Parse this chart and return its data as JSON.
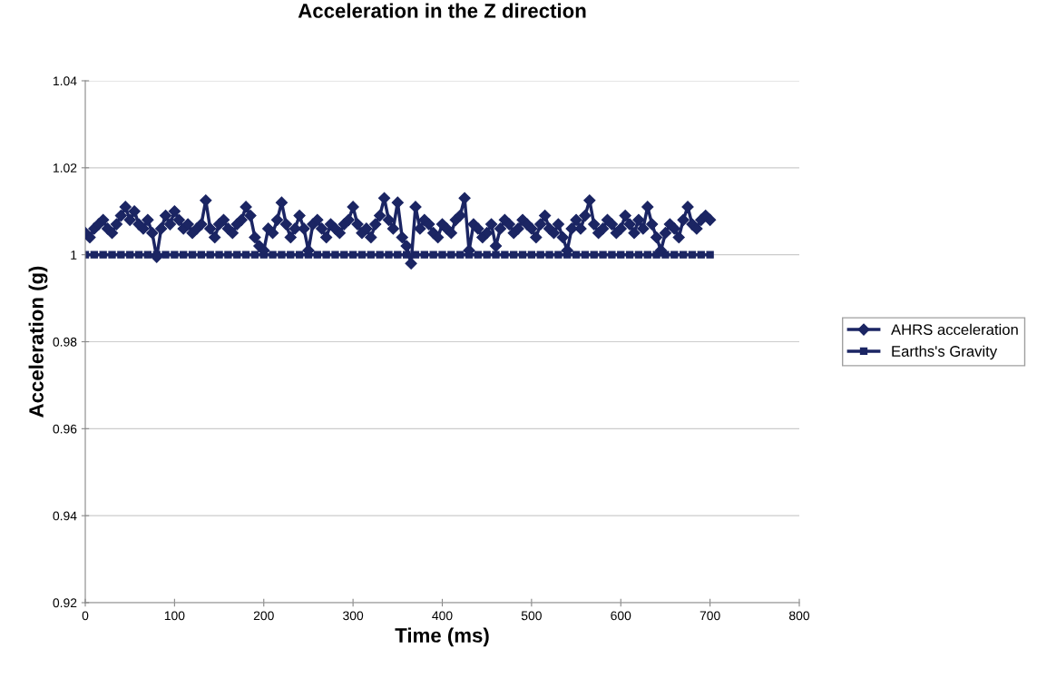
{
  "chart_data": {
    "type": "line",
    "title": "Acceleration in the Z direction",
    "xlabel": "Time (ms)",
    "ylabel": "Acceleration (g)",
    "xlim": [
      0,
      800
    ],
    "xticks": [
      0,
      100,
      200,
      300,
      400,
      500,
      600,
      700,
      800
    ],
    "ylim": [
      0.92,
      1.04
    ],
    "yticks": [
      0.92,
      0.94,
      0.96,
      0.98,
      1,
      1.02,
      1.04
    ],
    "grid": "y",
    "legend": "right",
    "series": [
      {
        "name": "AHRS acceleration",
        "color": "#1b2563",
        "marker": "diamond",
        "x": [
          0,
          5,
          10,
          15,
          20,
          25,
          30,
          35,
          40,
          45,
          50,
          55,
          60,
          65,
          70,
          75,
          80,
          85,
          90,
          95,
          100,
          105,
          110,
          115,
          120,
          125,
          130,
          135,
          140,
          145,
          150,
          155,
          160,
          165,
          170,
          175,
          180,
          185,
          190,
          195,
          200,
          205,
          210,
          215,
          220,
          225,
          230,
          235,
          240,
          245,
          250,
          255,
          260,
          265,
          270,
          275,
          280,
          285,
          290,
          295,
          300,
          305,
          310,
          315,
          320,
          325,
          330,
          335,
          340,
          345,
          350,
          355,
          360,
          365,
          370,
          375,
          380,
          385,
          390,
          395,
          400,
          405,
          410,
          415,
          420,
          425,
          430,
          435,
          440,
          445,
          450,
          455,
          460,
          465,
          470,
          475,
          480,
          485,
          490,
          495,
          500,
          505,
          510,
          515,
          520,
          525,
          530,
          535,
          540,
          545,
          550,
          555,
          560,
          565,
          570,
          575,
          580,
          585,
          590,
          595,
          600,
          605,
          610,
          615,
          620,
          625,
          630,
          635,
          640,
          645,
          650,
          655,
          660,
          665,
          670,
          675,
          680,
          685,
          690,
          695,
          700
        ],
        "values": [
          1.005,
          1.004,
          1.006,
          1.007,
          1.008,
          1.006,
          1.005,
          1.007,
          1.009,
          1.011,
          1.008,
          1.01,
          1.007,
          1.006,
          1.008,
          1.005,
          0.9995,
          1.006,
          1.009,
          1.007,
          1.01,
          1.008,
          1.006,
          1.007,
          1.005,
          1.006,
          1.007,
          1.0125,
          1.006,
          1.004,
          1.007,
          1.008,
          1.006,
          1.005,
          1.007,
          1.008,
          1.011,
          1.009,
          1.004,
          1.002,
          1.001,
          1.006,
          1.005,
          1.008,
          1.012,
          1.007,
          1.004,
          1.006,
          1.009,
          1.006,
          1.001,
          1.007,
          1.008,
          1.006,
          1.004,
          1.007,
          1.006,
          1.005,
          1.007,
          1.008,
          1.011,
          1.007,
          1.005,
          1.006,
          1.004,
          1.007,
          1.009,
          1.013,
          1.008,
          1.006,
          1.012,
          1.004,
          1.002,
          0.998,
          1.011,
          1.006,
          1.008,
          1.007,
          1.005,
          1.004,
          1.007,
          1.006,
          1.005,
          1.008,
          1.009,
          1.013,
          1.001,
          1.007,
          1.006,
          1.004,
          1.005,
          1.007,
          1.002,
          1.006,
          1.008,
          1.007,
          1.005,
          1.006,
          1.008,
          1.007,
          1.006,
          1.004,
          1.007,
          1.009,
          1.006,
          1.005,
          1.007,
          1.004,
          1.001,
          1.006,
          1.008,
          1.006,
          1.009,
          1.0125,
          1.007,
          1.005,
          1.006,
          1.008,
          1.007,
          1.005,
          1.006,
          1.009,
          1.007,
          1.005,
          1.008,
          1.006,
          1.011,
          1.007,
          1.004,
          1.001,
          1.005,
          1.007,
          1.006,
          1.004,
          1.008,
          1.011,
          1.007,
          1.006,
          1.008,
          1.009,
          1.008
        ]
      },
      {
        "name": "Earths's Gravity",
        "color": "#1b2563",
        "marker": "square",
        "x": [
          0,
          10,
          20,
          30,
          40,
          50,
          60,
          70,
          80,
          90,
          100,
          110,
          120,
          130,
          140,
          150,
          160,
          170,
          180,
          190,
          200,
          210,
          220,
          230,
          240,
          250,
          260,
          270,
          280,
          290,
          300,
          310,
          320,
          330,
          340,
          350,
          360,
          370,
          380,
          390,
          400,
          410,
          420,
          430,
          440,
          450,
          460,
          470,
          480,
          490,
          500,
          510,
          520,
          530,
          540,
          550,
          560,
          570,
          580,
          590,
          600,
          610,
          620,
          630,
          640,
          650,
          660,
          670,
          680,
          690,
          700
        ],
        "values": [
          1,
          1,
          1,
          1,
          1,
          1,
          1,
          1,
          1,
          1,
          1,
          1,
          1,
          1,
          1,
          1,
          1,
          1,
          1,
          1,
          1,
          1,
          1,
          1,
          1,
          1,
          1,
          1,
          1,
          1,
          1,
          1,
          1,
          1,
          1,
          1,
          1,
          1,
          1,
          1,
          1,
          1,
          1,
          1,
          1,
          1,
          1,
          1,
          1,
          1,
          1,
          1,
          1,
          1,
          1,
          1,
          1,
          1,
          1,
          1,
          1,
          1,
          1,
          1,
          1,
          1,
          1,
          1,
          1,
          1,
          1
        ]
      }
    ]
  }
}
